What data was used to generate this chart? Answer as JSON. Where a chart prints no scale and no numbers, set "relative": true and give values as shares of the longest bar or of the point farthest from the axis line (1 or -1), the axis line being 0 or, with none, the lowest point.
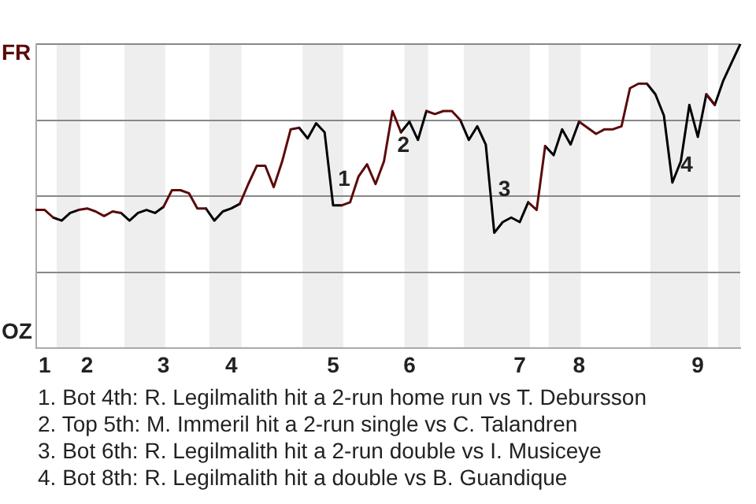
{
  "chart_data": {
    "type": "line",
    "relative": true,
    "categories": [
      null,
      "1",
      null,
      null,
      null,
      null,
      "2",
      null,
      null,
      null,
      null,
      null,
      null,
      null,
      null,
      "3",
      null,
      null,
      null,
      null,
      null,
      null,
      null,
      "4",
      null,
      null,
      null,
      null,
      null,
      null,
      null,
      null,
      null,
      null,
      null,
      "5",
      null,
      null,
      null,
      null,
      null,
      null,
      null,
      null,
      "6",
      null,
      null,
      null,
      null,
      null,
      null,
      null,
      null,
      null,
      null,
      null,
      null,
      "7",
      null,
      null,
      null,
      null,
      null,
      null,
      "8",
      null,
      null,
      null,
      null,
      null,
      null,
      null,
      null,
      null,
      null,
      null,
      null,
      null,
      "9",
      null,
      null,
      null,
      null,
      null
    ],
    "series": [
      {
        "color": "#5c0a0a",
        "values": [
          0.455,
          0.455,
          0.43,
          null,
          null,
          0.455,
          0.46,
          0.45,
          0.435,
          0.45,
          0.445,
          null,
          null,
          null,
          null,
          0.465,
          0.52,
          0.52,
          0.51,
          0.46,
          0.46,
          null,
          null,
          null,
          0.475,
          0.54,
          0.6,
          0.6,
          0.53,
          0.615,
          0.72,
          0.725,
          null,
          null,
          null,
          null,
          0.47,
          0.48,
          0.565,
          0.605,
          0.54,
          0.615,
          0.78,
          0.71,
          null,
          null,
          0.78,
          0.77,
          0.78,
          0.78,
          0.75,
          null,
          null,
          null,
          null,
          null,
          null,
          null,
          0.48,
          0.455,
          0.665,
          null,
          null,
          null,
          0.745,
          0.725,
          0.705,
          0.72,
          0.72,
          0.73,
          0.855,
          0.87,
          0.87,
          null,
          null,
          null,
          null,
          null,
          null,
          0.835,
          0.8,
          null,
          null,
          null
        ]
      },
      {
        "color": "#000000",
        "values": [
          null,
          null,
          0.43,
          0.42,
          0.445,
          0.455,
          null,
          null,
          null,
          null,
          0.445,
          0.42,
          0.445,
          0.455,
          0.445,
          0.465,
          null,
          null,
          null,
          null,
          0.46,
          0.42,
          0.45,
          0.46,
          0.475,
          null,
          null,
          null,
          null,
          null,
          null,
          0.725,
          0.69,
          0.74,
          0.71,
          0.47,
          0.47,
          null,
          null,
          null,
          null,
          null,
          null,
          0.71,
          0.745,
          0.685,
          0.78,
          null,
          null,
          null,
          0.75,
          0.685,
          0.73,
          0.67,
          0.38,
          0.415,
          0.43,
          0.415,
          0.48,
          null,
          0.665,
          0.635,
          0.72,
          0.67,
          0.745,
          null,
          null,
          null,
          null,
          null,
          null,
          null,
          0.87,
          0.835,
          0.765,
          0.545,
          0.615,
          0.8,
          0.695,
          0.835,
          0.8,
          0.88,
          0.94,
          1
        ]
      }
    ],
    "grid": "y",
    "legend": false,
    "marker": "none",
    "annotations": [
      "1",
      "2",
      "3",
      "4",
      "FR",
      "OZ",
      "1. Bot 4th: R. Legilmalith hit a 2-run home run vs T. Debursson",
      "2. Top 5th: M. Immeril hit a 2-run single vs C. Talandren",
      "3. Bot 6th: R. Legilmalith hit a 2-run double vs I. Musiceye",
      "4. Bot 8th: R. Legilmalith hit a double vs B. Guandique"
    ]
  }
}
